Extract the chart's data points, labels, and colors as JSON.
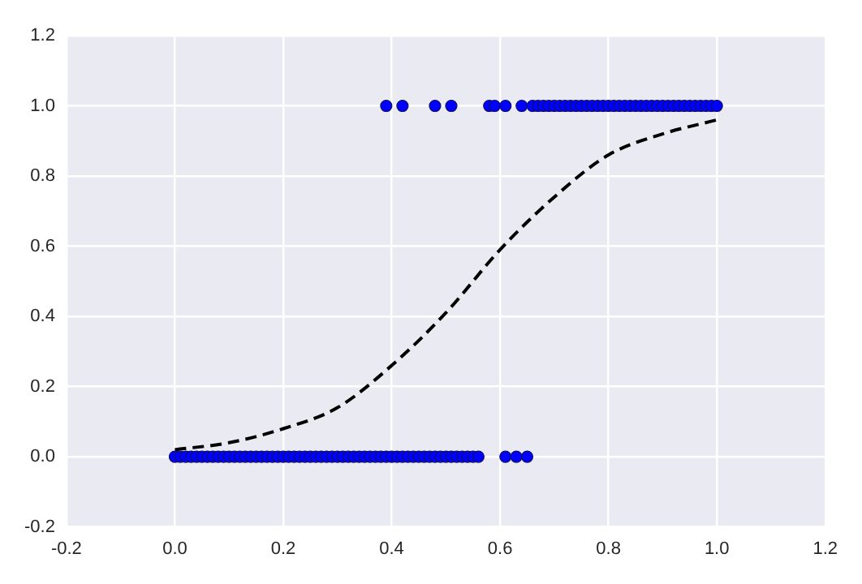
{
  "chart_data": {
    "type": "scatter",
    "xlim": [
      -0.2,
      1.2
    ],
    "ylim": [
      -0.2,
      1.2
    ],
    "xticks": [
      {
        "value": -0.2,
        "label": "-0.2"
      },
      {
        "value": 0,
        "label": "0.0"
      },
      {
        "value": 0.2,
        "label": "0.2"
      },
      {
        "value": 0.4,
        "label": "0.4"
      },
      {
        "value": 0.6,
        "label": "0.6"
      },
      {
        "value": 0.8,
        "label": "0.8"
      },
      {
        "value": 1,
        "label": "1.0"
      },
      {
        "value": 1.2,
        "label": "1.2"
      }
    ],
    "yticks": [
      {
        "value": -0.2,
        "label": "-0.2"
      },
      {
        "value": 0,
        "label": "0.0"
      },
      {
        "value": 0.2,
        "label": "0.2"
      },
      {
        "value": 0.4,
        "label": "0.4"
      },
      {
        "value": 0.6,
        "label": "0.6"
      },
      {
        "value": 0.8,
        "label": "0.8"
      },
      {
        "value": 1,
        "label": "1.0"
      },
      {
        "value": 1.2,
        "label": "1.2"
      }
    ],
    "grid": true,
    "legend": false,
    "series": [
      {
        "type": "scatter",
        "color": "#0000ff",
        "marker": "circle",
        "x": [
          0.0,
          0.01,
          0.02,
          0.03,
          0.04,
          0.05,
          0.06,
          0.07,
          0.08,
          0.09,
          0.1,
          0.11,
          0.12,
          0.13,
          0.14,
          0.15,
          0.16,
          0.17,
          0.18,
          0.19,
          0.2,
          0.21,
          0.22,
          0.23,
          0.24,
          0.25,
          0.26,
          0.27,
          0.28,
          0.29,
          0.3,
          0.31,
          0.32,
          0.33,
          0.34,
          0.35,
          0.36,
          0.37,
          0.38,
          0.39,
          0.4,
          0.41,
          0.42,
          0.43,
          0.44,
          0.45,
          0.46,
          0.47,
          0.48,
          0.49,
          0.5,
          0.51,
          0.52,
          0.53,
          0.54,
          0.55,
          0.56,
          0.61,
          0.63,
          0.65
        ],
        "values": [
          0,
          0,
          0,
          0,
          0,
          0,
          0,
          0,
          0,
          0,
          0,
          0,
          0,
          0,
          0,
          0,
          0,
          0,
          0,
          0,
          0,
          0,
          0,
          0,
          0,
          0,
          0,
          0,
          0,
          0,
          0,
          0,
          0,
          0,
          0,
          0,
          0,
          0,
          0,
          0,
          0,
          0,
          0,
          0,
          0,
          0,
          0,
          0,
          0,
          0,
          0,
          0,
          0,
          0,
          0,
          0,
          0,
          0,
          0,
          0
        ]
      },
      {
        "type": "scatter",
        "color": "#0000ff",
        "marker": "circle",
        "x": [
          0.39,
          0.42,
          0.48,
          0.51,
          0.58,
          0.59,
          0.61,
          0.64,
          0.66,
          0.67,
          0.68,
          0.69,
          0.7,
          0.71,
          0.72,
          0.73,
          0.74,
          0.75,
          0.76,
          0.77,
          0.78,
          0.79,
          0.8,
          0.81,
          0.82,
          0.83,
          0.84,
          0.85,
          0.86,
          0.87,
          0.88,
          0.89,
          0.9,
          0.91,
          0.92,
          0.93,
          0.94,
          0.95,
          0.96,
          0.97,
          0.98,
          0.99,
          1.0
        ],
        "values": [
          1,
          1,
          1,
          1,
          1,
          1,
          1,
          1,
          1,
          1,
          1,
          1,
          1,
          1,
          1,
          1,
          1,
          1,
          1,
          1,
          1,
          1,
          1,
          1,
          1,
          1,
          1,
          1,
          1,
          1,
          1,
          1,
          1,
          1,
          1,
          1,
          1,
          1,
          1,
          1,
          1,
          1,
          1
        ]
      },
      {
        "type": "line",
        "color": "#000000",
        "line_style": "dashed",
        "marker": "none",
        "x": [
          0,
          0.1,
          0.2,
          0.3,
          0.4,
          0.5,
          0.6,
          0.7,
          0.8,
          0.9,
          1.0
        ],
        "values": [
          0.02,
          0.04,
          0.08,
          0.14,
          0.26,
          0.41,
          0.59,
          0.74,
          0.86,
          0.92,
          0.96
        ]
      }
    ]
  }
}
